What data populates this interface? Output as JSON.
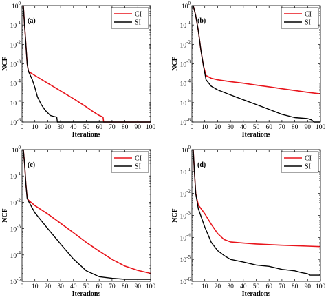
{
  "chart_data": [
    {
      "type": "line",
      "panel_label": "(a)",
      "xlabel": "Iterations",
      "ylabel": "NCF",
      "xlim": [
        0,
        100
      ],
      "ylim": [
        1e-06,
        1
      ],
      "yscale": "log",
      "x_ticks": [
        "0",
        "10",
        "20",
        "30",
        "40",
        "50",
        "60",
        "70",
        "80",
        "90",
        "100"
      ],
      "y_ticks": [
        {
          "base": "10",
          "exp": "0"
        },
        {
          "base": "10",
          "exp": "-1"
        },
        {
          "base": "10",
          "exp": "-2"
        },
        {
          "base": "10",
          "exp": "-3"
        },
        {
          "base": "10",
          "exp": "-4"
        },
        {
          "base": "10",
          "exp": "-5"
        },
        {
          "base": "10",
          "exp": "-6"
        }
      ],
      "legend": "top-right",
      "series": [
        {
          "name": "CI",
          "color": "#e8141b",
          "points": [
            [
              1,
              1
            ],
            [
              2,
              0.1
            ],
            [
              3,
              0.01
            ],
            [
              4,
              0.001
            ],
            [
              5,
              0.0004
            ],
            [
              10,
              0.00025
            ],
            [
              20,
              0.0001
            ],
            [
              30,
              4e-05
            ],
            [
              40,
              1.6e-05
            ],
            [
              50,
              6e-06
            ],
            [
              55,
              3.5e-06
            ],
            [
              60,
              2.2e-06
            ],
            [
              63,
              1.8e-06
            ],
            [
              63.5,
              1e-06
            ],
            [
              100,
              1e-06
            ]
          ]
        },
        {
          "name": "SI",
          "color": "#000000",
          "points": [
            [
              1,
              1
            ],
            [
              2,
              0.1
            ],
            [
              3,
              0.01
            ],
            [
              4,
              0.001
            ],
            [
              5,
              0.0004
            ],
            [
              8,
              0.00015
            ],
            [
              10,
              6e-05
            ],
            [
              12,
              2e-05
            ],
            [
              15,
              8e-06
            ],
            [
              18,
              4e-06
            ],
            [
              22,
              2.2e-06
            ],
            [
              24,
              2e-06
            ],
            [
              27,
              1.8e-06
            ],
            [
              27.5,
              1e-06
            ],
            [
              100,
              1e-06
            ]
          ]
        }
      ]
    },
    {
      "type": "line",
      "panel_label": "(b)",
      "xlabel": "Iterations",
      "ylabel": "NCF",
      "xlim": [
        0,
        100
      ],
      "ylim": [
        1e-06,
        1
      ],
      "yscale": "log",
      "x_ticks": [
        "0",
        "10",
        "20",
        "30",
        "40",
        "50",
        "60",
        "70",
        "80",
        "90",
        "100"
      ],
      "y_ticks": [
        {
          "base": "10",
          "exp": "0"
        },
        {
          "base": "10",
          "exp": "-1"
        },
        {
          "base": "10",
          "exp": "-2"
        },
        {
          "base": "10",
          "exp": "-3"
        },
        {
          "base": "10",
          "exp": "-4"
        },
        {
          "base": "10",
          "exp": "-5"
        },
        {
          "base": "10",
          "exp": "-6"
        }
      ],
      "legend": "top-right",
      "series": [
        {
          "name": "CI",
          "color": "#e8141b",
          "points": [
            [
              1,
              1
            ],
            [
              3,
              0.3
            ],
            [
              5,
              0.05
            ],
            [
              7,
              0.005
            ],
            [
              9,
              0.0008
            ],
            [
              11,
              0.00025
            ],
            [
              15,
              0.00018
            ],
            [
              20,
              0.00015
            ],
            [
              30,
              0.00012
            ],
            [
              40,
              0.0001
            ],
            [
              50,
              8e-05
            ],
            [
              60,
              6.5e-05
            ],
            [
              70,
              5.2e-05
            ],
            [
              80,
              4.2e-05
            ],
            [
              90,
              3.4e-05
            ],
            [
              100,
              2.8e-05
            ]
          ]
        },
        {
          "name": "SI",
          "color": "#000000",
          "points": [
            [
              1,
              1
            ],
            [
              3,
              0.3
            ],
            [
              5,
              0.05
            ],
            [
              7,
              0.005
            ],
            [
              9,
              0.0008
            ],
            [
              11,
              0.00015
            ],
            [
              15,
              7e-05
            ],
            [
              20,
              4.5e-05
            ],
            [
              30,
              2.5e-05
            ],
            [
              40,
              1.4e-05
            ],
            [
              50,
              8e-06
            ],
            [
              60,
              4.5e-06
            ],
            [
              70,
              2.5e-06
            ],
            [
              80,
              1.7e-06
            ],
            [
              90,
              1.5e-06
            ],
            [
              93,
              1.3e-06
            ],
            [
              95,
              1e-06
            ],
            [
              100,
              1e-06
            ]
          ]
        }
      ]
    },
    {
      "type": "line",
      "panel_label": "(c)",
      "xlabel": "Iterations",
      "ylabel": "NCF",
      "xlim": [
        0,
        100
      ],
      "ylim": [
        1e-05,
        1
      ],
      "yscale": "log",
      "x_ticks": [
        "0",
        "10",
        "20",
        "30",
        "40",
        "50",
        "60",
        "70",
        "80",
        "90",
        "100"
      ],
      "y_ticks": [
        {
          "base": "10",
          "exp": "0"
        },
        {
          "base": "10",
          "exp": "-1"
        },
        {
          "base": "10",
          "exp": "-2"
        },
        {
          "base": "10",
          "exp": "-3"
        },
        {
          "base": "10",
          "exp": "-4"
        },
        {
          "base": "10",
          "exp": "-5"
        }
      ],
      "legend": "top-right",
      "series": [
        {
          "name": "CI",
          "color": "#e8141b",
          "points": [
            [
              1,
              1
            ],
            [
              2,
              0.3
            ],
            [
              3,
              0.05
            ],
            [
              4,
              0.015
            ],
            [
              5,
              0.012
            ],
            [
              10,
              0.0075
            ],
            [
              20,
              0.0036
            ],
            [
              30,
              0.0016
            ],
            [
              40,
              0.0007
            ],
            [
              50,
              0.0003
            ],
            [
              60,
              0.00014
            ],
            [
              70,
              6.8e-05
            ],
            [
              80,
              3.8e-05
            ],
            [
              90,
              2.6e-05
            ],
            [
              100,
              2e-05
            ]
          ]
        },
        {
          "name": "SI",
          "color": "#000000",
          "points": [
            [
              1,
              1
            ],
            [
              2,
              0.3
            ],
            [
              3,
              0.05
            ],
            [
              4,
              0.014
            ],
            [
              5,
              0.011
            ],
            [
              10,
              0.004
            ],
            [
              20,
              0.001
            ],
            [
              30,
              0.00026
            ],
            [
              40,
              7e-05
            ],
            [
              50,
              2.5e-05
            ],
            [
              60,
              1.5e-05
            ],
            [
              70,
              1.3e-05
            ],
            [
              80,
              1.2e-05
            ],
            [
              90,
              1.2e-05
            ],
            [
              100,
              1.2e-05
            ]
          ]
        }
      ]
    },
    {
      "type": "line",
      "panel_label": "(d)",
      "xlabel": "Iterations",
      "ylabel": "NCF",
      "xlim": [
        0,
        100
      ],
      "ylim": [
        1e-06,
        1
      ],
      "yscale": "log",
      "x_ticks": [
        "0",
        "10",
        "20",
        "30",
        "40",
        "50",
        "60",
        "70",
        "80",
        "90",
        "100"
      ],
      "y_ticks": [
        {
          "base": "10",
          "exp": "0"
        },
        {
          "base": "10",
          "exp": "-1"
        },
        {
          "base": "10",
          "exp": "-2"
        },
        {
          "base": "10",
          "exp": "-3"
        },
        {
          "base": "10",
          "exp": "-4"
        },
        {
          "base": "10",
          "exp": "-5"
        },
        {
          "base": "10",
          "exp": "-6"
        }
      ],
      "legend": "top-right",
      "series": [
        {
          "name": "CI",
          "color": "#e8141b",
          "points": [
            [
              1,
              1
            ],
            [
              2,
              0.1
            ],
            [
              3,
              0.01
            ],
            [
              5,
              0.003
            ],
            [
              10,
              0.0012
            ],
            [
              15,
              0.0004
            ],
            [
              20,
              0.00015
            ],
            [
              25,
              8e-05
            ],
            [
              30,
              6.2e-05
            ],
            [
              40,
              5.5e-05
            ],
            [
              50,
              5e-05
            ],
            [
              60,
              4.7e-05
            ],
            [
              70,
              4.4e-05
            ],
            [
              80,
              4.2e-05
            ],
            [
              90,
              4e-05
            ],
            [
              100,
              3.8e-05
            ]
          ]
        },
        {
          "name": "SI",
          "color": "#000000",
          "points": [
            [
              1,
              1
            ],
            [
              2,
              0.1
            ],
            [
              3,
              0.01
            ],
            [
              5,
              0.002
            ],
            [
              10,
              0.0003
            ],
            [
              15,
              6e-05
            ],
            [
              20,
              2.5e-05
            ],
            [
              25,
              1.5e-05
            ],
            [
              30,
              1e-05
            ],
            [
              40,
              7.5e-06
            ],
            [
              50,
              5.5e-06
            ],
            [
              60,
              4.8e-06
            ],
            [
              70,
              3.5e-06
            ],
            [
              80,
              3e-06
            ],
            [
              85,
              2.5e-06
            ],
            [
              90,
              2.2e-06
            ],
            [
              92,
              1.9e-06
            ],
            [
              100,
              1.9e-06
            ]
          ]
        }
      ]
    }
  ]
}
